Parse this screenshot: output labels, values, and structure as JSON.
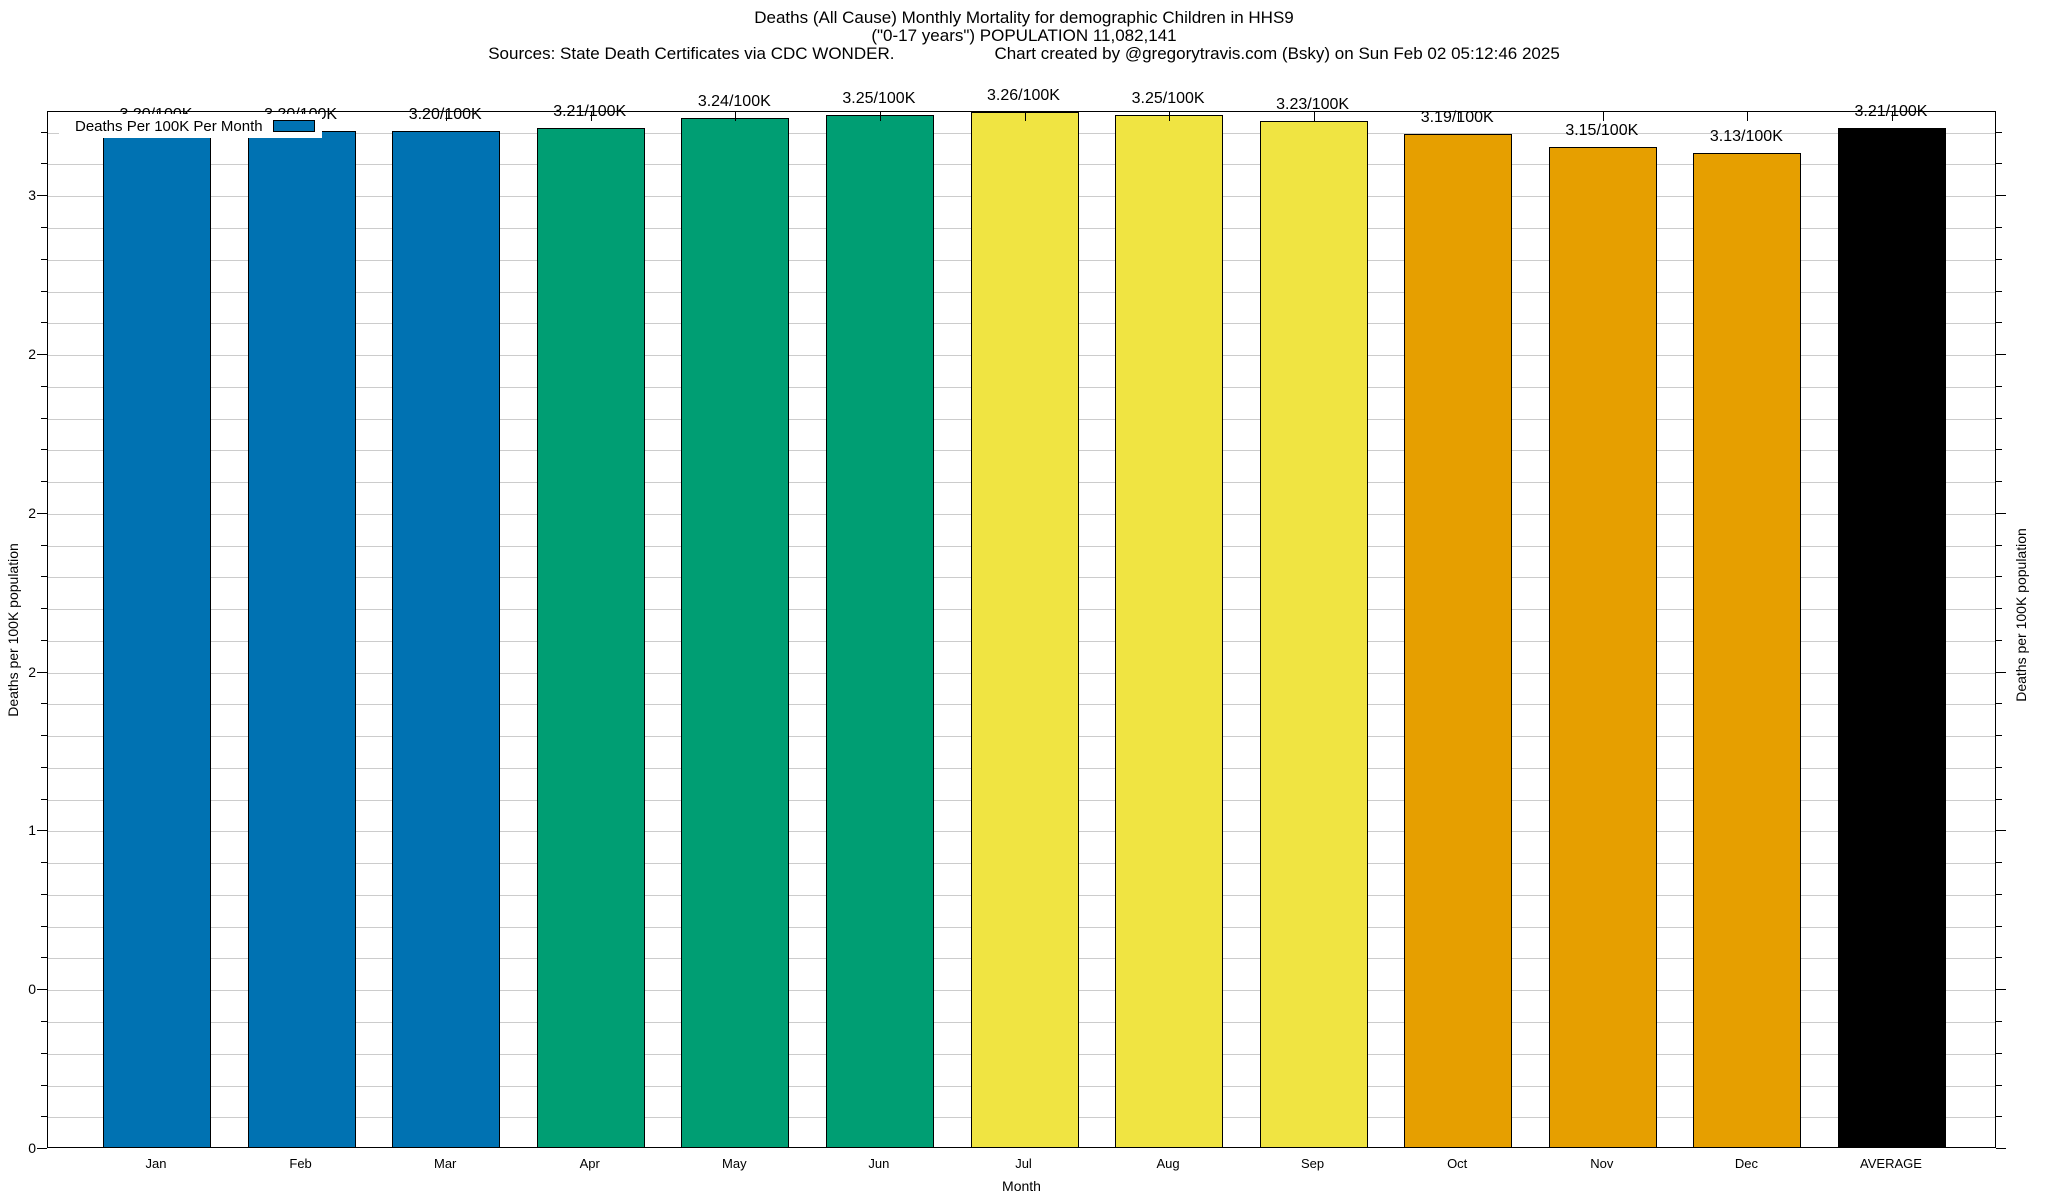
{
  "title": {
    "line1": "Deaths (All Cause) Monthly Mortality for demographic Children in HHS9",
    "line2": "(\"0-17 years\") POPULATION 11,082,141",
    "line3_sources": "Sources: State Death Certificates via CDC WONDER.",
    "line3_credit": "Chart created by @gregorytravis.com (Bsky) on Sun Feb 02 05:12:46 2025"
  },
  "legend": {
    "label": "Deaths Per 100K Per Month",
    "color": "#0072B2"
  },
  "axes": {
    "left_label": "Deaths per 100K population",
    "right_label": "Deaths per 100K population",
    "xlabel": "Month"
  },
  "chart_data": {
    "type": "bar",
    "title": "Deaths (All Cause) Monthly Mortality for demographic Children in HHS9 (\"0-17 years\") POPULATION 11,082,141",
    "xlabel": "Month",
    "ylabel": "Deaths per 100K population",
    "categories": [
      "Jan",
      "Feb",
      "Mar",
      "Apr",
      "May",
      "Jun",
      "Jul",
      "Aug",
      "Sep",
      "Oct",
      "Nov",
      "Dec",
      "AVERAGE"
    ],
    "values": [
      3.2,
      3.2,
      3.2,
      3.21,
      3.24,
      3.25,
      3.26,
      3.25,
      3.23,
      3.19,
      3.15,
      3.13,
      3.21
    ],
    "bar_labels": [
      "3.20/100K",
      "3.20/100K",
      "3.20/100K",
      "3.21/100K",
      "3.24/100K",
      "3.25/100K",
      "3.26/100K",
      "3.25/100K",
      "3.23/100K",
      "3.19/100K",
      "3.15/100K",
      "3.13/100K",
      "3.21/100K"
    ],
    "colors": [
      "#0072B2",
      "#0072B2",
      "#0072B2",
      "#009E73",
      "#009E73",
      "#009E73",
      "#F0E442",
      "#F0E442",
      "#F0E442",
      "#E69F00",
      "#E69F00",
      "#E69F00",
      "#000000"
    ],
    "ylim": [
      0,
      3.265
    ],
    "grid": true,
    "gridline_step": 0.1,
    "grid_color": "#cccccc",
    "legend": "Deaths Per 100K Per Month",
    "legend_position": "top-left",
    "ytick_labels": [
      {
        "value": 0.0,
        "label": "0"
      },
      {
        "value": 0.5,
        "label": "0"
      },
      {
        "value": 1.0,
        "label": "1"
      },
      {
        "value": 1.5,
        "label": "2"
      },
      {
        "value": 2.0,
        "label": "2"
      },
      {
        "value": 2.5,
        "label": "2"
      },
      {
        "value": 3.0,
        "label": "3"
      }
    ]
  }
}
